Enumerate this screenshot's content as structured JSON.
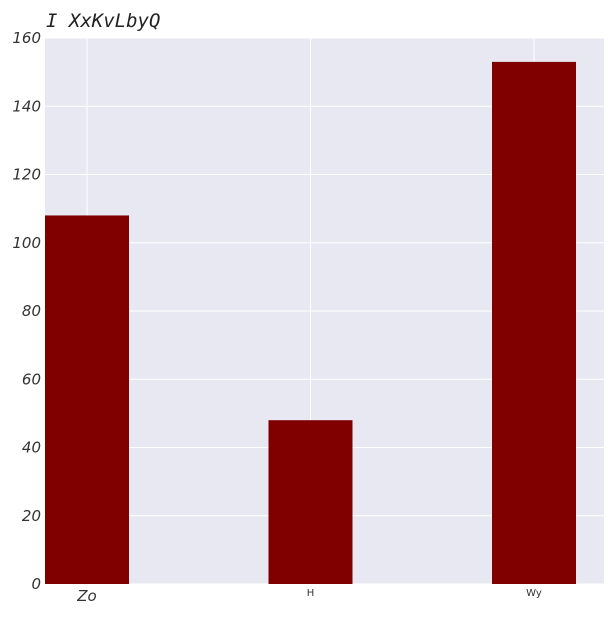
{
  "chart_data": {
    "type": "bar",
    "title": "I XxKvLbyQ",
    "categories": [
      "Zo",
      "H",
      "Wy"
    ],
    "values": [
      108,
      48,
      153
    ],
    "xlabel": "",
    "ylabel": "",
    "ylim": [
      0,
      160
    ],
    "yticks": [
      0,
      20,
      40,
      60,
      80,
      100,
      120,
      140,
      160
    ],
    "grid": true,
    "colors": {
      "bar": "#800000",
      "plot_background": "#e8e8f2",
      "grid": "#ffffff"
    }
  }
}
